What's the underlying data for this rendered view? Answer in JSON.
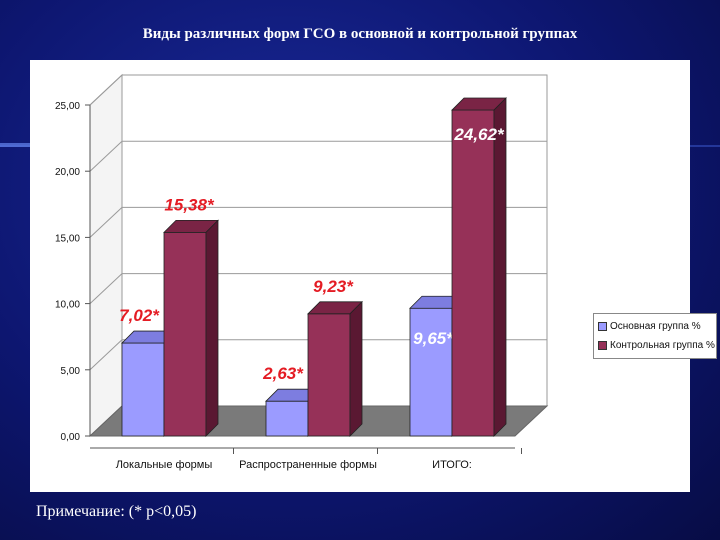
{
  "slide": {
    "title": "Виды различных форм ГСО в основной и контрольной группах",
    "note": "Примечание: (* p<0,05)"
  },
  "colors": {
    "series1_front": "#9b9bff",
    "series1_top": "#7d7de0",
    "series1_side": "#5656b8",
    "series2_front": "#963158",
    "series2_top": "#7a2445",
    "series2_side": "#5a1832",
    "label_red": "#e41c24",
    "label_white": "#ffffff"
  },
  "chart_data": {
    "type": "bar",
    "title": "",
    "xlabel": "",
    "ylabel": "",
    "ylim": [
      0,
      25
    ],
    "yticks": [
      "0,00",
      "5,00",
      "10,00",
      "15,00",
      "20,00",
      "25,00"
    ],
    "ytick_values": [
      0,
      5,
      10,
      15,
      20,
      25
    ],
    "categories": [
      "Локальные формы",
      "Распространенные формы",
      "ИТОГО:"
    ],
    "series": [
      {
        "name": "Основная группа %",
        "values": [
          7.02,
          2.63,
          9.65
        ],
        "labels": [
          "7,02*",
          "2,63*",
          "9,65*"
        ]
      },
      {
        "name": "Контрольная группа %",
        "values": [
          15.38,
          9.23,
          24.62
        ],
        "labels": [
          "15,38*",
          "9,23*",
          "24,62*"
        ]
      }
    ],
    "grid": true,
    "legend_position": "right",
    "three_d": true
  }
}
